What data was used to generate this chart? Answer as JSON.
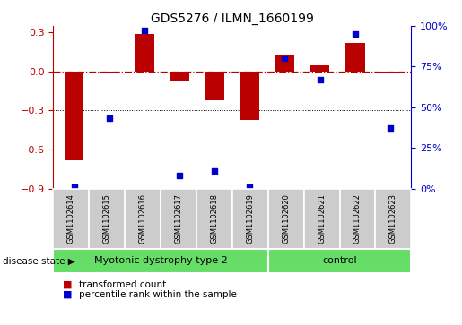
{
  "title": "GDS5276 / ILMN_1660199",
  "samples": [
    "GSM1102614",
    "GSM1102615",
    "GSM1102616",
    "GSM1102617",
    "GSM1102618",
    "GSM1102619",
    "GSM1102620",
    "GSM1102621",
    "GSM1102622",
    "GSM1102623"
  ],
  "red_values": [
    -0.68,
    -0.01,
    0.29,
    -0.08,
    -0.22,
    -0.37,
    0.13,
    0.05,
    0.22,
    -0.01
  ],
  "blue_values": [
    1,
    43,
    97,
    8,
    11,
    1,
    80,
    67,
    95,
    37
  ],
  "ylim_left": [
    -0.9,
    0.35
  ],
  "ylim_right": [
    0,
    100
  ],
  "yticks_left": [
    -0.9,
    -0.6,
    -0.3,
    0.0,
    0.3
  ],
  "yticks_right": [
    0,
    25,
    50,
    75,
    100
  ],
  "hline_y": 0.0,
  "dotted_lines": [
    -0.3,
    -0.6
  ],
  "bar_width": 0.55,
  "red_color": "#BB0000",
  "blue_color": "#0000CC",
  "group1_label": "Myotonic dystrophy type 2",
  "group2_label": "control",
  "group1_count": 6,
  "group2_count": 4,
  "sample_box_color": "#CCCCCC",
  "group_box_color": "#66DD66",
  "disease_state_label": "disease state",
  "legend_red_label": "transformed count",
  "legend_blue_label": "percentile rank within the sample",
  "title_fontsize": 10,
  "tick_fontsize": 8,
  "sample_fontsize": 6,
  "group_fontsize": 8,
  "legend_fontsize": 7.5
}
